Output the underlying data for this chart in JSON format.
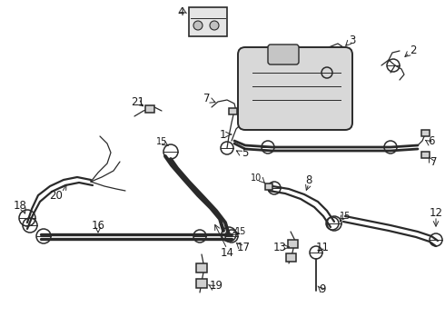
{
  "bg_color": "#ffffff",
  "line_color": "#2a2a2a",
  "label_color": "#1a1a1a",
  "figsize": [
    4.9,
    3.6
  ],
  "dpi": 100,
  "lw_hose": 1.6,
  "lw_thin": 0.9,
  "lw_clamp": 1.1,
  "fs_label": 8.5,
  "fs_small": 7.0,
  "xlim": [
    0,
    490
  ],
  "ylim": [
    0,
    360
  ]
}
